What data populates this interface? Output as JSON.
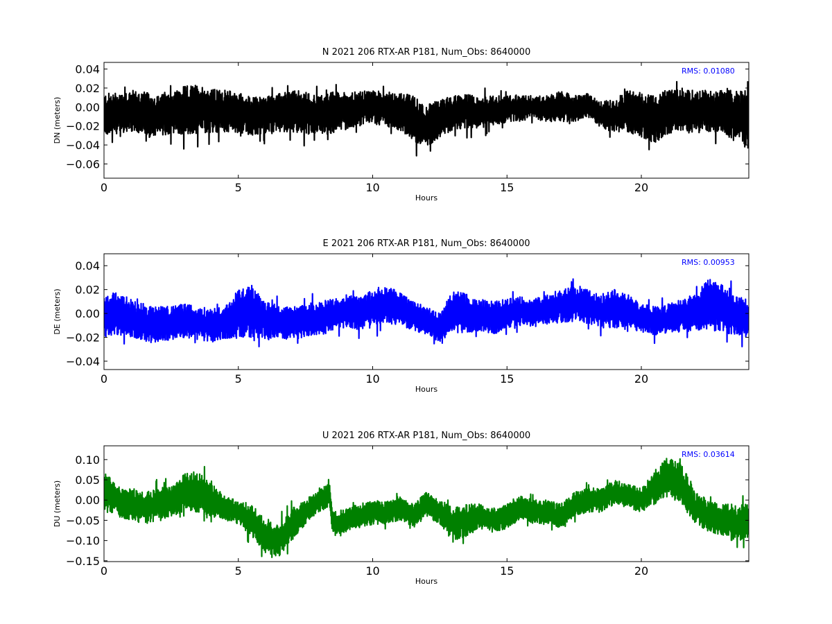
{
  "chart_data": [
    {
      "type": "line",
      "title": "N 2021 206 RTX-AR  P181, Num_Obs: 8640000",
      "xlabel": "Hours",
      "ylabel": "DN (meters)",
      "xlim": [
        0,
        24
      ],
      "ylim": [
        -0.075,
        0.047
      ],
      "xticks": [
        0,
        5,
        10,
        15,
        20
      ],
      "xtick_labels": [
        "0",
        "5",
        "10",
        "15",
        "20"
      ],
      "yticks": [
        -0.06,
        -0.04,
        -0.02,
        0.0,
        0.02,
        0.04
      ],
      "ytick_labels": [
        "−0.06",
        "−0.04",
        "−0.02",
        "0.00",
        "0.02",
        "0.04"
      ],
      "annotation": "RMS:  0.01080",
      "annotation_color": "#0000ff",
      "line_color": "#000000",
      "grid": false,
      "series": [
        {
          "x": [
            0,
            0.5,
            1,
            1.5,
            2,
            2.5,
            3,
            3.5,
            4,
            4.5,
            5,
            5.5,
            6,
            6.5,
            7,
            7.5,
            8,
            8.5,
            9,
            9.5,
            10,
            10.5,
            11,
            11.5,
            12,
            12.5,
            13,
            13.5,
            14,
            14.5,
            15,
            15.5,
            16,
            16.5,
            17,
            17.5,
            18,
            18.5,
            19,
            19.5,
            20,
            20.5,
            21,
            21.5,
            22,
            22.5,
            23,
            23.5,
            24
          ],
          "center": [
            -0.008,
            -0.006,
            -0.004,
            -0.008,
            -0.01,
            -0.006,
            -0.004,
            -0.002,
            -0.005,
            -0.004,
            -0.006,
            -0.01,
            -0.008,
            -0.006,
            -0.004,
            -0.006,
            -0.008,
            -0.006,
            -0.004,
            -0.002,
            0,
            -0.002,
            -0.005,
            -0.012,
            -0.02,
            -0.012,
            -0.006,
            -0.004,
            -0.006,
            -0.004,
            -0.002,
            -0.001,
            0,
            -0.002,
            0.001,
            -0.002,
            0.002,
            -0.008,
            -0.01,
            -0.004,
            -0.008,
            -0.012,
            -0.006,
            -0.004,
            -0.006,
            -0.004,
            -0.004,
            -0.01,
            -0.012
          ],
          "half_range": [
            0.022,
            0.022,
            0.022,
            0.024,
            0.022,
            0.022,
            0.026,
            0.026,
            0.024,
            0.022,
            0.022,
            0.02,
            0.02,
            0.02,
            0.022,
            0.022,
            0.02,
            0.022,
            0.02,
            0.018,
            0.018,
            0.018,
            0.02,
            0.024,
            0.022,
            0.02,
            0.018,
            0.018,
            0.016,
            0.016,
            0.014,
            0.014,
            0.012,
            0.014,
            0.016,
            0.014,
            0.012,
            0.014,
            0.018,
            0.022,
            0.024,
            0.026,
            0.024,
            0.022,
            0.024,
            0.022,
            0.022,
            0.028,
            0.032
          ]
        }
      ]
    },
    {
      "type": "line",
      "title": "E 2021 206 RTX-AR  P181, Num_Obs: 8640000",
      "xlabel": "Hours",
      "ylabel": "DE (meters)",
      "xlim": [
        0,
        24
      ],
      "ylim": [
        -0.047,
        0.05
      ],
      "xticks": [
        0,
        5,
        10,
        15,
        20
      ],
      "xtick_labels": [
        "0",
        "5",
        "10",
        "15",
        "20"
      ],
      "yticks": [
        -0.04,
        -0.02,
        0.0,
        0.02,
        0.04
      ],
      "ytick_labels": [
        "−0.04",
        "−0.02",
        "0.00",
        "0.02",
        "0.04"
      ],
      "annotation": "RMS:  0.00953",
      "annotation_color": "#0000ff",
      "line_color": "#0000ff",
      "grid": false,
      "series": [
        {
          "x": [
            0,
            0.5,
            1,
            1.5,
            2,
            2.5,
            3,
            3.5,
            4,
            4.5,
            5,
            5.5,
            6,
            6.5,
            7,
            7.5,
            8,
            8.5,
            9,
            9.5,
            10,
            10.5,
            11,
            11.5,
            12,
            12.5,
            13,
            13.5,
            14,
            14.5,
            15,
            15.5,
            16,
            16.5,
            17,
            17.5,
            18,
            18.5,
            19,
            19.5,
            20,
            20.5,
            21,
            21.5,
            22,
            22.5,
            23,
            23.5,
            24
          ],
          "center": [
            -0.002,
            0,
            -0.004,
            -0.008,
            -0.01,
            -0.008,
            -0.006,
            -0.008,
            -0.01,
            -0.008,
            0,
            0.002,
            -0.006,
            -0.008,
            -0.008,
            -0.006,
            -0.004,
            -0.002,
            0.002,
            0,
            0.004,
            0.008,
            0.004,
            -0.002,
            -0.006,
            -0.012,
            0.002,
            0,
            -0.002,
            -0.004,
            0,
            0.002,
            0,
            0.004,
            0.006,
            0.008,
            0.006,
            0.002,
            0.004,
            0.002,
            -0.004,
            -0.006,
            -0.004,
            -0.002,
            0.002,
            0.008,
            0.004,
            -0.002,
            -0.004
          ],
          "half_range": [
            0.018,
            0.018,
            0.016,
            0.016,
            0.016,
            0.014,
            0.014,
            0.014,
            0.014,
            0.014,
            0.02,
            0.022,
            0.016,
            0.014,
            0.014,
            0.014,
            0.014,
            0.014,
            0.014,
            0.014,
            0.016,
            0.016,
            0.014,
            0.012,
            0.012,
            0.012,
            0.018,
            0.016,
            0.014,
            0.014,
            0.012,
            0.012,
            0.012,
            0.012,
            0.014,
            0.014,
            0.014,
            0.014,
            0.016,
            0.014,
            0.012,
            0.012,
            0.012,
            0.014,
            0.016,
            0.022,
            0.02,
            0.016,
            0.016
          ]
        }
      ]
    },
    {
      "type": "line",
      "title": "U 2021 206 RTX-AR  P181, Num_Obs: 8640000",
      "xlabel": "Hours",
      "ylabel": "DU (meters)",
      "xlim": [
        0,
        24
      ],
      "ylim": [
        -0.152,
        0.134
      ],
      "xticks": [
        0,
        5,
        10,
        15,
        20
      ],
      "xtick_labels": [
        "0",
        "5",
        "10",
        "15",
        "20"
      ],
      "yticks": [
        -0.15,
        -0.1,
        -0.05,
        0.0,
        0.05,
        0.1
      ],
      "ytick_labels": [
        "−0.15",
        "−0.10",
        "−0.05",
        "0.00",
        "0.05",
        "0.10"
      ],
      "annotation": "RMS:  0.03614",
      "annotation_color": "#0000ff",
      "line_color": "#008000",
      "grid": false,
      "series": [
        {
          "x": [
            0,
            0.5,
            1,
            1.5,
            2,
            2.5,
            3,
            3.5,
            4,
            4.5,
            5,
            5.5,
            6,
            6.5,
            7,
            7.5,
            8,
            8.4,
            8.5,
            9,
            9.5,
            10,
            10.5,
            11,
            11.5,
            12,
            12.5,
            13,
            13.5,
            14,
            14.5,
            15,
            15.5,
            16,
            16.5,
            17,
            17.5,
            18,
            18.5,
            19,
            19.5,
            20,
            20.5,
            21,
            21.5,
            22,
            22.5,
            23,
            23.5,
            24
          ],
          "center": [
            0.02,
            0,
            -0.01,
            -0.02,
            -0.01,
            0.0,
            0.02,
            0.02,
            0.0,
            -0.02,
            -0.03,
            -0.05,
            -0.09,
            -0.1,
            -0.06,
            -0.03,
            0.0,
            0.01,
            -0.06,
            -0.05,
            -0.04,
            -0.03,
            -0.03,
            -0.02,
            -0.04,
            -0.01,
            -0.03,
            -0.06,
            -0.05,
            -0.04,
            -0.05,
            -0.04,
            -0.02,
            -0.03,
            -0.03,
            -0.04,
            -0.01,
            0.0,
            0.0,
            0.02,
            0.01,
            0.0,
            0.03,
            0.06,
            0.04,
            -0.02,
            -0.04,
            -0.05,
            -0.06,
            -0.05
          ],
          "half_range": [
            0.05,
            0.04,
            0.04,
            0.04,
            0.04,
            0.04,
            0.05,
            0.05,
            0.04,
            0.03,
            0.03,
            0.04,
            0.04,
            0.04,
            0.04,
            0.03,
            0.03,
            0.03,
            0.03,
            0.03,
            0.03,
            0.03,
            0.03,
            0.03,
            0.03,
            0.03,
            0.03,
            0.04,
            0.04,
            0.03,
            0.03,
            0.03,
            0.03,
            0.03,
            0.03,
            0.03,
            0.03,
            0.03,
            0.03,
            0.03,
            0.03,
            0.03,
            0.04,
            0.05,
            0.05,
            0.04,
            0.04,
            0.04,
            0.05,
            0.04
          ]
        }
      ]
    }
  ]
}
